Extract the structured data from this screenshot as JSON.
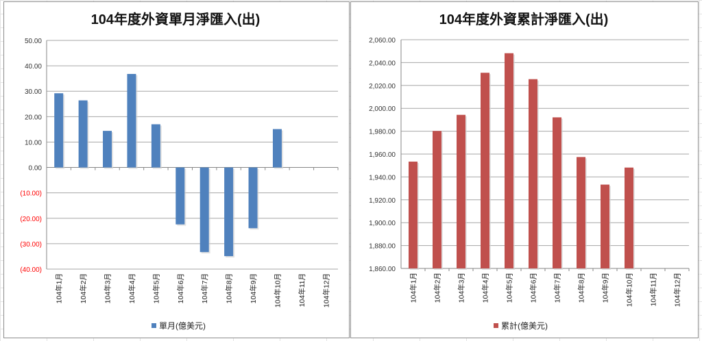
{
  "chart_data": [
    {
      "type": "bar",
      "title": "104年度外資單月淨匯入(出)",
      "categories": [
        "104年1月",
        "104年2月",
        "104年3月",
        "104年4月",
        "104年5月",
        "104年6月",
        "104年7月",
        "104年8月",
        "104年9月",
        "104年10月",
        "104年11月",
        "104年12月"
      ],
      "series": [
        {
          "name": "單月(億美元)",
          "color": "#4f81bd",
          "values": [
            29.2,
            26.4,
            14.4,
            36.8,
            17.0,
            -22.4,
            -33.3,
            -34.9,
            -23.9,
            15.1,
            null,
            null
          ]
        }
      ],
      "ylim": [
        -40,
        50
      ],
      "ytick_step": 10,
      "yticks": [
        "50.00",
        "40.00",
        "30.00",
        "20.00",
        "10.00",
        "0.00",
        "(10.00)",
        "(20.00)",
        "(30.00)",
        "(40.00)"
      ],
      "negative_tick_color": "#ff0000",
      "grid": true,
      "legend": "bottom",
      "xlabel": "",
      "ylabel": ""
    },
    {
      "type": "bar",
      "title": "104年度外資累計淨匯入(出)",
      "categories": [
        "104年1月",
        "104年2月",
        "104年3月",
        "104年4月",
        "104年5月",
        "104年6月",
        "104年7月",
        "104年8月",
        "104年9月",
        "104年10月",
        "104年11月",
        "104年12月"
      ],
      "series": [
        {
          "name": "累計(億美元)",
          "color": "#c0504d",
          "values": [
            1953.4,
            1980.2,
            1994.3,
            2031.1,
            2048.2,
            2025.5,
            1992.1,
            1957.4,
            1933.3,
            1948.2,
            null,
            null
          ]
        }
      ],
      "ylim": [
        1860,
        2060
      ],
      "ytick_step": 20,
      "yticks": [
        "2,060.00",
        "2,040.00",
        "2,020.00",
        "2,000.00",
        "1,980.00",
        "1,960.00",
        "1,940.00",
        "1,920.00",
        "1,900.00",
        "1,880.00",
        "1,860.00"
      ],
      "grid": true,
      "legend": "bottom",
      "xlabel": "",
      "ylabel": ""
    }
  ]
}
